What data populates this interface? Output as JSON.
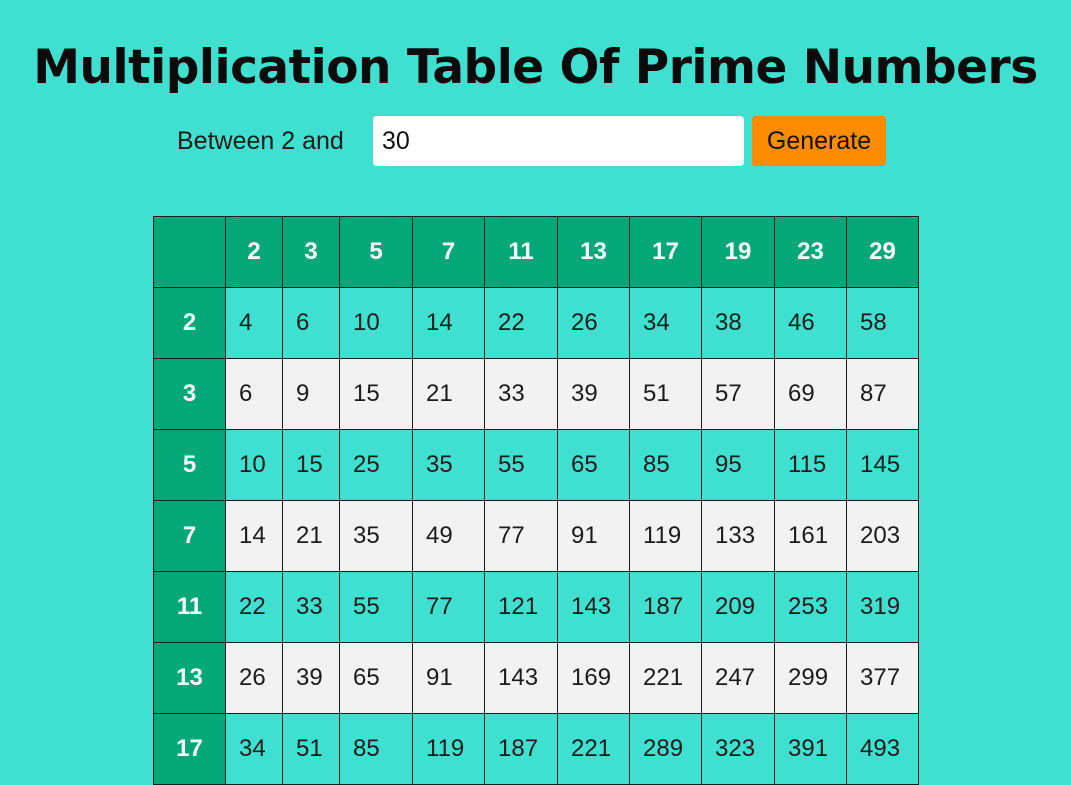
{
  "page": {
    "title": "Multiplication Table Of Prime Numbers"
  },
  "form": {
    "label": "Between 2 and",
    "input_value": "30",
    "generate_label": "Generate"
  },
  "colors": {
    "background": "#40E0D0",
    "header_green": "#04A777",
    "button_orange": "#FF8C00",
    "alt_row": "#F2F2F2"
  },
  "table": {
    "corner": "",
    "primes": [
      "2",
      "3",
      "5",
      "7",
      "11",
      "13",
      "17",
      "19",
      "23",
      "29"
    ],
    "rows": [
      {
        "header": "2",
        "cells": [
          "4",
          "6",
          "10",
          "14",
          "22",
          "26",
          "34",
          "38",
          "46",
          "58"
        ]
      },
      {
        "header": "3",
        "cells": [
          "6",
          "9",
          "15",
          "21",
          "33",
          "39",
          "51",
          "57",
          "69",
          "87"
        ]
      },
      {
        "header": "5",
        "cells": [
          "10",
          "15",
          "25",
          "35",
          "55",
          "65",
          "85",
          "95",
          "115",
          "145"
        ]
      },
      {
        "header": "7",
        "cells": [
          "14",
          "21",
          "35",
          "49",
          "77",
          "91",
          "119",
          "133",
          "161",
          "203"
        ]
      },
      {
        "header": "11",
        "cells": [
          "22",
          "33",
          "55",
          "77",
          "121",
          "143",
          "187",
          "209",
          "253",
          "319"
        ]
      },
      {
        "header": "13",
        "cells": [
          "26",
          "39",
          "65",
          "91",
          "143",
          "169",
          "221",
          "247",
          "299",
          "377"
        ]
      },
      {
        "header": "17",
        "cells": [
          "34",
          "51",
          "85",
          "119",
          "187",
          "221",
          "289",
          "323",
          "391",
          "493"
        ]
      }
    ]
  }
}
